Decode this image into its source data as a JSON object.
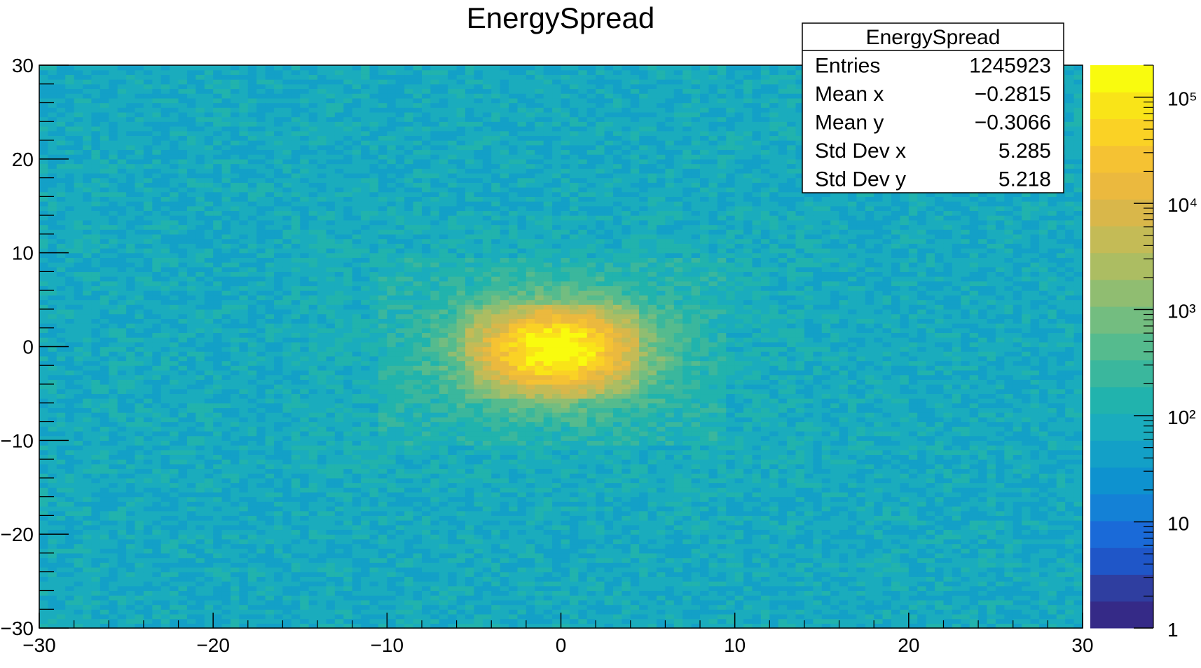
{
  "chart_data": {
    "type": "heatmap",
    "title": "EnergySpread",
    "xlabel": "",
    "ylabel": "",
    "xlim": [
      -30,
      30
    ],
    "ylim": [
      -30,
      30
    ],
    "x_ticks": [
      -30,
      -20,
      -10,
      0,
      10,
      20,
      30
    ],
    "y_ticks": [
      -30,
      -20,
      -10,
      0,
      10,
      20,
      30
    ],
    "x_tick_labels": [
      "−30",
      "−20",
      "−10",
      "0",
      "10",
      "20",
      "30"
    ],
    "y_tick_labels": [
      "−30",
      "−20",
      "−10",
      "0",
      "10",
      "20",
      "30"
    ],
    "nbins_x": 120,
    "nbins_y": 120,
    "z_scale": "log",
    "zlim": [
      1,
      200000
    ],
    "colorbar_ticks": [
      1,
      10,
      100,
      1000,
      10000,
      100000
    ],
    "colorbar_tick_labels": [
      "1",
      "10",
      "10²",
      "10³",
      "10⁴",
      "10⁵"
    ],
    "grid": false,
    "palette": [
      "#352a87",
      "#2f3ea0",
      "#1f56c8",
      "#1a6ad8",
      "#1481d6",
      "#0e92cf",
      "#13a0c7",
      "#1aacbd",
      "#21b3ad",
      "#3ab79d",
      "#55bb8e",
      "#73bd80",
      "#90bd71",
      "#acbd62",
      "#c4bb56",
      "#d9b74a",
      "#ebb93e",
      "#f5c233",
      "#fad225",
      "#f9e418",
      "#f9fb0e"
    ],
    "stats_box": {
      "title": "EnergySpread",
      "rows": [
        {
          "label": "Entries",
          "value": "1245923"
        },
        {
          "label": "Mean x",
          "value": "−0.2815"
        },
        {
          "label": "Mean y",
          "value": "−0.3066"
        },
        {
          "label": "Std Dev x",
          "value": "5.285"
        },
        {
          "label": "Std Dev y",
          "value": "5.218"
        }
      ]
    }
  }
}
